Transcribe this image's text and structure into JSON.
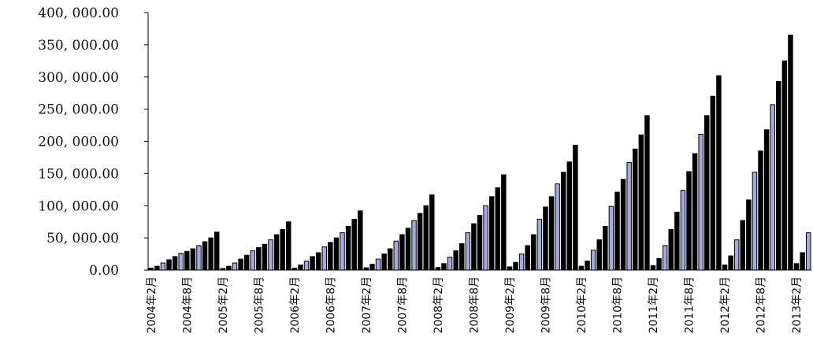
{
  "chart_data": {
    "type": "bar",
    "title": "",
    "xlabel": "",
    "ylabel": "",
    "ylim": [
      0,
      400000
    ],
    "y_ticks": [
      0,
      50000,
      100000,
      150000,
      200000,
      250000,
      300000,
      350000,
      400000
    ],
    "y_tick_labels": [
      "0.00",
      "50, 000.00",
      "100, 000.00",
      "150, 000.00",
      "200, 000.00",
      "250, 000.00",
      "300, 000.00",
      "350, 000.00",
      "400, 000.00"
    ],
    "grid": false,
    "legend": "none",
    "colors": {
      "bar_dark": "#000000",
      "bar_light": "#a8a8e0",
      "axis": "#000000"
    },
    "x_tick_labels": [
      {
        "index": 0,
        "label": "2004年2月"
      },
      {
        "index": 6,
        "label": "2004年8月"
      },
      {
        "index": 12,
        "label": "2005年2月"
      },
      {
        "index": 18,
        "label": "2005年8月"
      },
      {
        "index": 24,
        "label": "2006年2月"
      },
      {
        "index": 30,
        "label": "2006年8月"
      },
      {
        "index": 36,
        "label": "2007年2月"
      },
      {
        "index": 42,
        "label": "2007年8月"
      },
      {
        "index": 48,
        "label": "2008年2月"
      },
      {
        "index": 54,
        "label": "2008年8月"
      },
      {
        "index": 60,
        "label": "2009年2月"
      },
      {
        "index": 66,
        "label": "2009年8月"
      },
      {
        "index": 72,
        "label": "2010年2月"
      },
      {
        "index": 78,
        "label": "2010年8月"
      },
      {
        "index": 84,
        "label": "2011年2月"
      },
      {
        "index": 90,
        "label": "2011年8月"
      },
      {
        "index": 96,
        "label": "2012年2月"
      },
      {
        "index": 102,
        "label": "2012年8月"
      },
      {
        "index": 108,
        "label": "2013年2月"
      }
    ],
    "values": [
      3000,
      6000,
      11000,
      16000,
      21000,
      26000,
      29000,
      33000,
      38000,
      44000,
      50000,
      59000,
      2500,
      6000,
      11000,
      17000,
      23000,
      30000,
      35000,
      40000,
      47000,
      55000,
      63000,
      75000,
      3000,
      8000,
      14000,
      21000,
      27000,
      36000,
      43000,
      50000,
      58000,
      68000,
      79000,
      92000,
      3500,
      9000,
      17000,
      25000,
      33000,
      45000,
      55000,
      65000,
      77000,
      88000,
      100000,
      117000,
      4000,
      10000,
      20000,
      30000,
      41000,
      58000,
      72000,
      85000,
      100000,
      114000,
      128000,
      148000,
      5000,
      12000,
      25000,
      38000,
      55000,
      79000,
      98000,
      114000,
      134000,
      152000,
      168000,
      194000,
      6000,
      14000,
      31000,
      47000,
      68000,
      99000,
      121000,
      141000,
      167000,
      188000,
      210000,
      240000,
      7000,
      18000,
      38000,
      63000,
      90000,
      124000,
      153000,
      181000,
      211000,
      240000,
      270000,
      302000,
      8000,
      22000,
      47000,
      77000,
      109000,
      152000,
      185000,
      218000,
      257000,
      293000,
      325000,
      365000,
      10000,
      27000,
      58000
    ],
    "light_bar_months": [
      2,
      5,
      8
    ]
  }
}
